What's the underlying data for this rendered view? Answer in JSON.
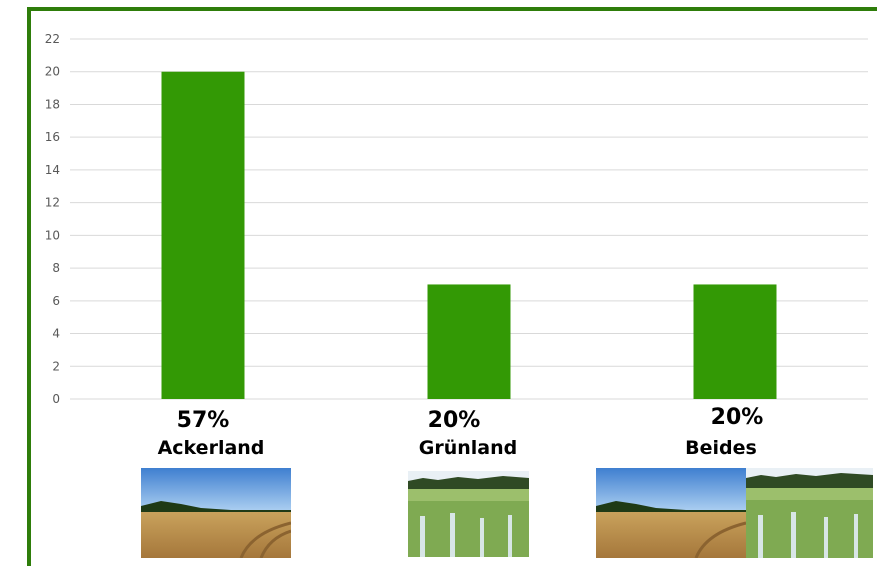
{
  "colors": {
    "bar": "#339905",
    "border": "#2e7d0a",
    "grid": "#d9d9d9",
    "tick": "#595959"
  },
  "chart_data": {
    "type": "bar",
    "categories": [
      "Ackerland",
      "Grünland",
      "Beides"
    ],
    "values": [
      20,
      7,
      7
    ],
    "percent_labels": [
      "57%",
      "20%",
      "20%"
    ],
    "title": "",
    "xlabel": "",
    "ylabel": "",
    "ylim": [
      0,
      22
    ],
    "yticks": [
      0,
      2,
      4,
      6,
      8,
      10,
      12,
      14,
      16,
      18,
      20,
      22
    ],
    "grid": true
  },
  "images": [
    {
      "name": "ackerland-photo",
      "kind": "field"
    },
    {
      "name": "gruenland-photo",
      "kind": "grass"
    },
    {
      "name": "beides-photo",
      "kind": "both"
    }
  ]
}
